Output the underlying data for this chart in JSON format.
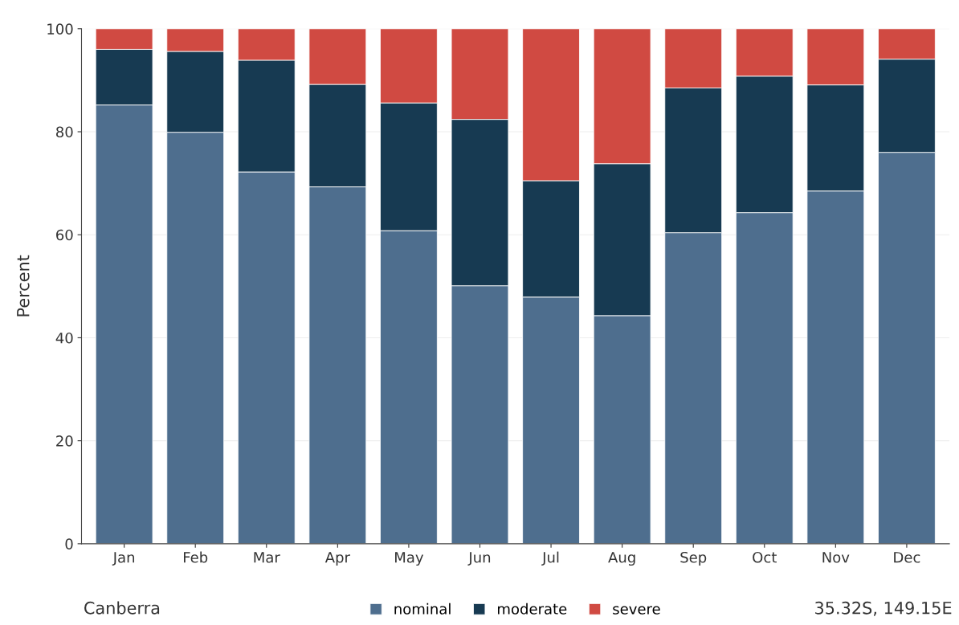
{
  "chart_data": {
    "type": "bar",
    "stacked": true,
    "ylabel": "Percent",
    "categories": [
      "Jan",
      "Feb",
      "Mar",
      "Apr",
      "May",
      "Jun",
      "Jul",
      "Aug",
      "Sep",
      "Oct",
      "Nov",
      "Dec"
    ],
    "series": [
      {
        "name": "nominal",
        "color": "#4e6e8e",
        "values": [
          85.2,
          79.9,
          72.2,
          69.3,
          60.8,
          50.1,
          47.9,
          44.3,
          60.4,
          64.3,
          68.5,
          76.0
        ]
      },
      {
        "name": "moderate",
        "color": "#173a52",
        "values": [
          10.8,
          15.7,
          21.7,
          19.9,
          24.8,
          32.3,
          22.6,
          29.5,
          28.1,
          26.5,
          20.6,
          18.1
        ]
      },
      {
        "name": "severe",
        "color": "#d04a42",
        "values": [
          4.0,
          4.4,
          6.1,
          10.8,
          14.4,
          17.6,
          29.5,
          26.2,
          11.5,
          9.2,
          10.9,
          5.9
        ]
      }
    ],
    "ylim": [
      0,
      100
    ],
    "yticks": [
      0,
      20,
      40,
      60,
      80,
      100
    ],
    "grid": "y",
    "legend": "bottom",
    "annotations": [
      "Canberra",
      "35.32S, 149.15E"
    ]
  }
}
